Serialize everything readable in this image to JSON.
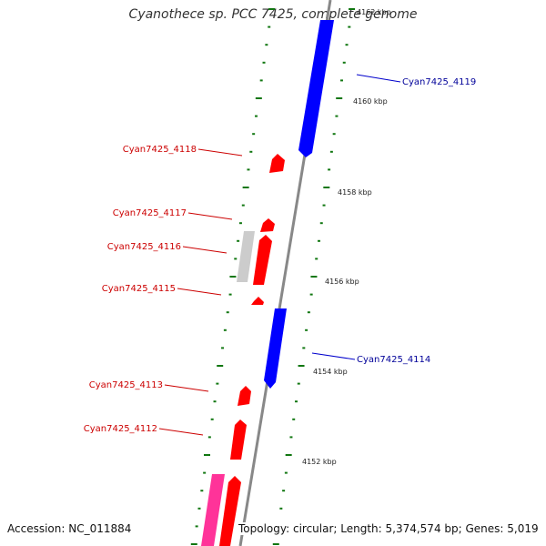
{
  "title": "Cyanothece sp. PCC 7425, complete genome",
  "accession": "Accession: NC_011884",
  "topology": "Topology: circular; Length: 5,374,574 bp; Genes: 5,019",
  "colors": {
    "backbone": "#888888",
    "forward_gene": "#ff0000",
    "reverse_gene": "#0000ff",
    "rna_gene": "#cccccc",
    "pink_gene": "#ff3399",
    "tick": "#117711",
    "label_forward": "#cc0000",
    "label_reverse": "#000099"
  },
  "scale_labels": [
    "4162 kbp",
    "4160 kbp",
    "4158 kbp",
    "4156 kbp",
    "4154 kbp",
    "4152 kbp"
  ],
  "genes": [
    {
      "name": "Cyan7425_4119",
      "strand": "reverse",
      "color": "#0000ff"
    },
    {
      "name": "Cyan7425_4118",
      "strand": "forward",
      "color": "#ff0000"
    },
    {
      "name": "Cyan7425_4117",
      "strand": "forward",
      "color": "#ff0000"
    },
    {
      "name": "Cyan7425_4116",
      "strand": "forward",
      "color": "#ff0000"
    },
    {
      "name": "Cyan7425_4115",
      "strand": "forward",
      "color": "#ff0000"
    },
    {
      "name": "Cyan7425_4114",
      "strand": "reverse",
      "color": "#0000ff"
    },
    {
      "name": "Cyan7425_4113",
      "strand": "forward",
      "color": "#ff0000"
    },
    {
      "name": "Cyan7425_4112",
      "strand": "forward",
      "color": "#ff0000"
    }
  ]
}
